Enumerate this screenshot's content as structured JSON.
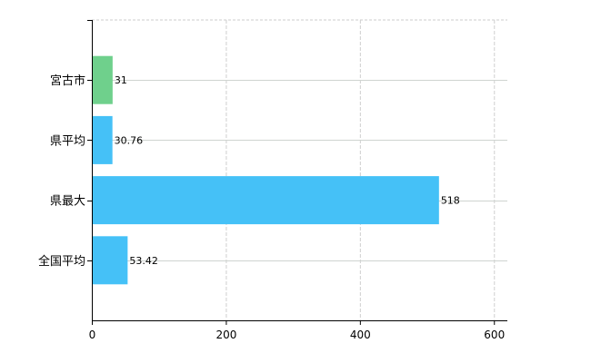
{
  "chart_data": {
    "type": "bar",
    "orientation": "horizontal",
    "categories": [
      "宮古市",
      "県平均",
      "県最大",
      "全国平均"
    ],
    "values": [
      31,
      30.76,
      518,
      53.42
    ],
    "value_labels": [
      "31",
      "30.76",
      "518",
      "53.42"
    ],
    "colors": [
      "#6fd08c",
      "#45c1f7",
      "#45c1f7",
      "#45c1f7"
    ],
    "xlim": [
      0,
      620
    ],
    "xticks": [
      0,
      200,
      400,
      600
    ],
    "xtick_labels": [
      "0",
      "200",
      "400",
      "600"
    ],
    "title": "",
    "xlabel": "",
    "ylabel": "",
    "grid": true,
    "legend": "none"
  }
}
